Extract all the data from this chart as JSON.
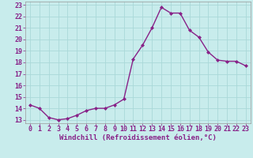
{
  "x": [
    0,
    1,
    2,
    3,
    4,
    5,
    6,
    7,
    8,
    9,
    10,
    11,
    12,
    13,
    14,
    15,
    16,
    17,
    18,
    19,
    20,
    21,
    22,
    23
  ],
  "y": [
    14.3,
    14.0,
    13.2,
    13.0,
    13.1,
    13.4,
    13.8,
    14.0,
    14.0,
    14.3,
    14.8,
    18.3,
    19.5,
    21.0,
    22.8,
    22.3,
    22.3,
    20.8,
    20.2,
    18.9,
    18.2,
    18.1,
    18.1,
    17.7
  ],
  "line_color": "#882288",
  "marker": "D",
  "marker_size": 2.0,
  "linewidth": 1.0,
  "xlabel": "Windchill (Refroidissement éolien,°C)",
  "xlabel_fontsize": 6.5,
  "xtick_labels": [
    "0",
    "1",
    "2",
    "3",
    "4",
    "5",
    "6",
    "7",
    "8",
    "9",
    "10",
    "11",
    "12",
    "13",
    "14",
    "15",
    "16",
    "17",
    "18",
    "19",
    "20",
    "21",
    "22",
    "23"
  ],
  "ytick_labels": [
    "13",
    "14",
    "15",
    "16",
    "17",
    "18",
    "19",
    "20",
    "21",
    "22",
    "23"
  ],
  "yticks": [
    13,
    14,
    15,
    16,
    17,
    18,
    19,
    20,
    21,
    22,
    23
  ],
  "ylim": [
    12.7,
    23.3
  ],
  "xlim": [
    -0.5,
    23.5
  ],
  "bg_color": "#c8ecec",
  "grid_color": "#aad8d8",
  "tick_fontsize": 6.0,
  "tick_color": "#882288",
  "label_color": "#882288"
}
